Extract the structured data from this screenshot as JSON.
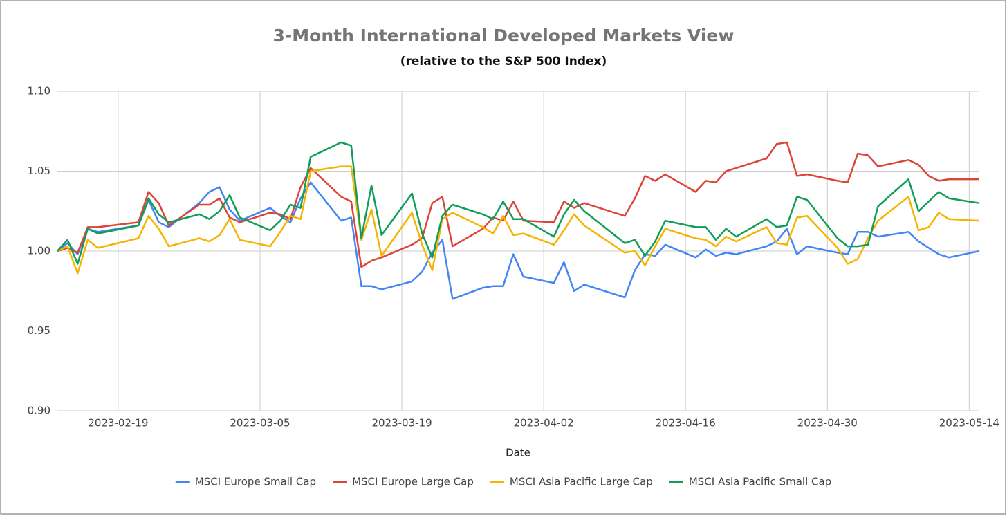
{
  "chart_data": {
    "type": "line",
    "title": "3-Month International Developed Markets View",
    "subtitle": "(relative to the S&P 500 Index)",
    "x_label": "Date",
    "x": [
      "2023-02-13",
      "2023-02-14",
      "2023-02-15",
      "2023-02-16",
      "2023-02-17",
      "2023-02-21",
      "2023-02-22",
      "2023-02-23",
      "2023-02-24",
      "2023-02-27",
      "2023-02-28",
      "2023-03-01",
      "2023-03-02",
      "2023-03-03",
      "2023-03-06",
      "2023-03-07",
      "2023-03-08",
      "2023-03-09",
      "2023-03-10",
      "2023-03-13",
      "2023-03-14",
      "2023-03-15",
      "2023-03-16",
      "2023-03-17",
      "2023-03-20",
      "2023-03-21",
      "2023-03-22",
      "2023-03-23",
      "2023-03-24",
      "2023-03-27",
      "2023-03-28",
      "2023-03-29",
      "2023-03-30",
      "2023-03-31",
      "2023-04-03",
      "2023-04-04",
      "2023-04-05",
      "2023-04-06",
      "2023-04-10",
      "2023-04-11",
      "2023-04-12",
      "2023-04-13",
      "2023-04-14",
      "2023-04-17",
      "2023-04-18",
      "2023-04-19",
      "2023-04-20",
      "2023-04-21",
      "2023-04-24",
      "2023-04-25",
      "2023-04-26",
      "2023-04-27",
      "2023-04-28",
      "2023-05-01",
      "2023-05-02",
      "2023-05-03",
      "2023-05-04",
      "2023-05-05",
      "2023-05-08",
      "2023-05-09",
      "2023-05-10",
      "2023-05-11",
      "2023-05-12",
      "2023-05-15"
    ],
    "xlim": [
      "2023-02-13",
      "2023-05-15"
    ],
    "xticks": [
      "2023-02-19",
      "2023-03-05",
      "2023-03-19",
      "2023-04-02",
      "2023-04-16",
      "2023-04-30",
      "2023-05-14"
    ],
    "ylim": [
      0.9,
      1.1
    ],
    "yticks": [
      {
        "value": 0.9,
        "label": "0.90"
      },
      0.95,
      {
        "value": 1.0,
        "label": "1.00"
      },
      1.05,
      {
        "value": 1.1,
        "label": "1.10"
      }
    ],
    "grid": true,
    "legend": "bottom",
    "series": [
      {
        "name": "MSCI Europe Small Cap",
        "color": "#4285f4",
        "values": [
          1.0,
          1.005,
          0.998,
          1.014,
          1.012,
          1.016,
          1.032,
          1.018,
          1.015,
          1.03,
          1.037,
          1.04,
          1.026,
          1.019,
          1.027,
          1.022,
          1.018,
          1.033,
          1.043,
          1.019,
          1.021,
          0.978,
          0.978,
          0.976,
          0.981,
          0.987,
          0.999,
          1.007,
          0.97,
          0.977,
          0.978,
          0.978,
          0.998,
          0.984,
          0.98,
          0.993,
          0.975,
          0.979,
          0.971,
          0.988,
          0.998,
          0.997,
          1.004,
          0.996,
          1.001,
          0.997,
          0.999,
          0.998,
          1.003,
          1.006,
          1.014,
          0.998,
          1.003,
          0.999,
          0.998,
          1.012,
          1.012,
          1.009,
          1.012,
          1.006,
          1.002,
          0.998,
          0.996,
          1.0
        ]
      },
      {
        "name": "MSCI Europe Large Cap",
        "color": "#db4437",
        "values": [
          1.0,
          1.002,
          0.999,
          1.015,
          1.015,
          1.018,
          1.037,
          1.03,
          1.016,
          1.029,
          1.029,
          1.033,
          1.021,
          1.018,
          1.024,
          1.023,
          1.02,
          1.04,
          1.052,
          1.034,
          1.031,
          0.99,
          0.994,
          0.996,
          1.004,
          1.008,
          1.03,
          1.034,
          1.003,
          1.014,
          1.021,
          1.019,
          1.031,
          1.019,
          1.018,
          1.031,
          1.027,
          1.03,
          1.022,
          1.033,
          1.047,
          1.044,
          1.048,
          1.037,
          1.044,
          1.043,
          1.05,
          1.052,
          1.058,
          1.067,
          1.068,
          1.047,
          1.048,
          1.044,
          1.043,
          1.061,
          1.06,
          1.053,
          1.057,
          1.054,
          1.047,
          1.044,
          1.045,
          1.045
        ]
      },
      {
        "name": "MSCI Asia Pacific Large Cap",
        "color": "#f4b400",
        "values": [
          1.0,
          1.003,
          0.986,
          1.007,
          1.002,
          1.008,
          1.022,
          1.014,
          1.003,
          1.008,
          1.006,
          1.01,
          1.02,
          1.007,
          1.003,
          1.012,
          1.022,
          1.02,
          1.05,
          1.053,
          1.053,
          1.007,
          1.026,
          0.997,
          1.024,
          1.004,
          0.988,
          1.02,
          1.024,
          1.015,
          1.011,
          1.022,
          1.01,
          1.011,
          1.004,
          1.013,
          1.023,
          1.016,
          0.999,
          1.0,
          0.991,
          1.003,
          1.014,
          1.008,
          1.007,
          1.003,
          1.009,
          1.006,
          1.015,
          1.005,
          1.004,
          1.021,
          1.022,
          1.002,
          0.992,
          0.995,
          1.008,
          1.019,
          1.034,
          1.013,
          1.015,
          1.024,
          1.02,
          1.019
        ]
      },
      {
        "name": "MSCI Asia Pacific Small Cap",
        "color": "#0f9d58",
        "values": [
          1.0,
          1.007,
          0.992,
          1.014,
          1.011,
          1.016,
          1.033,
          1.023,
          1.018,
          1.023,
          1.02,
          1.025,
          1.035,
          1.021,
          1.013,
          1.019,
          1.029,
          1.027,
          1.059,
          1.068,
          1.066,
          1.008,
          1.041,
          1.01,
          1.036,
          1.011,
          0.996,
          1.022,
          1.029,
          1.023,
          1.02,
          1.031,
          1.02,
          1.02,
          1.009,
          1.023,
          1.032,
          1.025,
          1.005,
          1.007,
          0.997,
          1.006,
          1.019,
          1.015,
          1.015,
          1.007,
          1.014,
          1.009,
          1.02,
          1.015,
          1.016,
          1.034,
          1.032,
          1.008,
          1.003,
          1.003,
          1.004,
          1.028,
          1.045,
          1.025,
          1.031,
          1.037,
          1.033,
          1.03
        ]
      }
    ]
  }
}
